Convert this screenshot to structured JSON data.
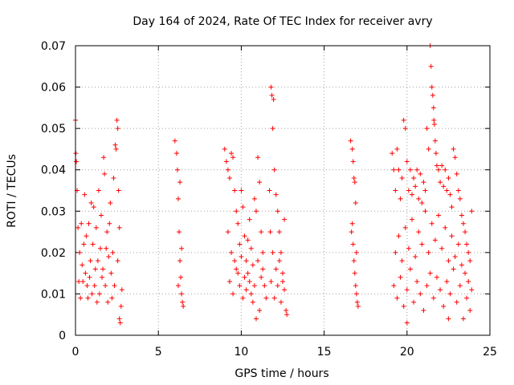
{
  "chart_data": {
    "type": "scatter",
    "title": "Day 164 of 2024, Rate Of TEC Index for receiver avry",
    "xlabel": "GPS time / hours",
    "ylabel": "ROTI / TECUs",
    "xlim": [
      0,
      25
    ],
    "ylim": [
      0,
      0.07
    ],
    "xticks": [
      0,
      5,
      10,
      15,
      20,
      25
    ],
    "xtick_labels": [
      "0",
      "5",
      "10",
      "15",
      "20",
      "25"
    ],
    "yticks": [
      0,
      0.01,
      0.02,
      0.03,
      0.04,
      0.05,
      0.06,
      0.07
    ],
    "ytick_labels": [
      "0",
      "0.01",
      "0.02",
      "0.03",
      "0.04",
      "0.05",
      "0.06",
      "0.07"
    ],
    "grid": true,
    "marker": "plus",
    "series": [
      {
        "name": "avry ROTI",
        "color": "#ff0000",
        "points": [
          [
            0.0,
            0.052
          ],
          [
            0.02,
            0.044
          ],
          [
            0.05,
            0.042
          ],
          [
            0.1,
            0.035
          ],
          [
            0.15,
            0.026
          ],
          [
            0.2,
            0.013
          ],
          [
            0.3,
            0.009
          ],
          [
            0.4,
            0.017
          ],
          [
            0.5,
            0.022
          ],
          [
            0.55,
            0.034
          ],
          [
            0.6,
            0.015
          ],
          [
            0.7,
            0.012
          ],
          [
            0.8,
            0.027
          ],
          [
            0.9,
            0.018
          ],
          [
            1.0,
            0.01
          ],
          [
            1.1,
            0.031
          ],
          [
            1.2,
            0.016
          ],
          [
            1.3,
            0.008
          ],
          [
            1.4,
            0.035
          ],
          [
            1.5,
            0.021
          ],
          [
            1.6,
            0.014
          ],
          [
            1.7,
            0.043
          ],
          [
            1.75,
            0.039
          ],
          [
            1.8,
            0.012
          ],
          [
            1.9,
            0.025
          ],
          [
            2.0,
            0.019
          ],
          [
            2.1,
            0.032
          ],
          [
            2.2,
            0.009
          ],
          [
            2.3,
            0.038
          ],
          [
            2.4,
            0.046
          ],
          [
            2.45,
            0.045
          ],
          [
            2.5,
            0.052
          ],
          [
            2.55,
            0.05
          ],
          [
            2.6,
            0.035
          ],
          [
            2.65,
            0.004
          ],
          [
            2.7,
            0.003
          ],
          [
            2.75,
            0.007
          ],
          [
            2.8,
            0.011
          ],
          [
            0.25,
            0.02
          ],
          [
            0.35,
            0.027
          ],
          [
            0.45,
            0.013
          ],
          [
            0.65,
            0.024
          ],
          [
            0.75,
            0.009
          ],
          [
            0.85,
            0.014
          ],
          [
            0.95,
            0.032
          ],
          [
            1.05,
            0.022
          ],
          [
            1.15,
            0.012
          ],
          [
            1.25,
            0.026
          ],
          [
            1.35,
            0.018
          ],
          [
            1.45,
            0.01
          ],
          [
            1.55,
            0.029
          ],
          [
            1.65,
            0.016
          ],
          [
            1.85,
            0.021
          ],
          [
            1.95,
            0.008
          ],
          [
            2.05,
            0.027
          ],
          [
            2.15,
            0.015
          ],
          [
            2.25,
            0.02
          ],
          [
            2.35,
            0.012
          ],
          [
            2.55,
            0.018
          ],
          [
            2.65,
            0.026
          ],
          [
            6.0,
            0.047
          ],
          [
            6.1,
            0.044
          ],
          [
            6.15,
            0.04
          ],
          [
            6.2,
            0.033
          ],
          [
            6.25,
            0.025
          ],
          [
            6.3,
            0.018
          ],
          [
            6.35,
            0.014
          ],
          [
            6.4,
            0.01
          ],
          [
            6.45,
            0.008
          ],
          [
            6.5,
            0.007
          ],
          [
            6.3,
            0.037
          ],
          [
            6.2,
            0.012
          ],
          [
            6.4,
            0.021
          ],
          [
            9.0,
            0.045
          ],
          [
            9.1,
            0.042
          ],
          [
            9.2,
            0.04
          ],
          [
            9.3,
            0.038
          ],
          [
            9.4,
            0.044
          ],
          [
            9.5,
            0.043
          ],
          [
            9.6,
            0.035
          ],
          [
            9.7,
            0.03
          ],
          [
            9.8,
            0.027
          ],
          [
            9.9,
            0.022
          ],
          [
            10.0,
            0.035
          ],
          [
            10.1,
            0.031
          ],
          [
            10.2,
            0.024
          ],
          [
            10.3,
            0.018
          ],
          [
            10.4,
            0.015
          ],
          [
            10.5,
            0.028
          ],
          [
            10.6,
            0.021
          ],
          [
            10.7,
            0.017
          ],
          [
            10.8,
            0.033
          ],
          [
            10.9,
            0.03
          ],
          [
            11.0,
            0.043
          ],
          [
            11.1,
            0.037
          ],
          [
            11.2,
            0.025
          ],
          [
            11.3,
            0.02
          ],
          [
            11.4,
            0.012
          ],
          [
            11.5,
            0.009
          ],
          [
            11.1,
            0.006
          ],
          [
            10.9,
            0.004
          ],
          [
            9.3,
            0.013
          ],
          [
            9.5,
            0.01
          ],
          [
            9.7,
            0.016
          ],
          [
            9.9,
            0.012
          ],
          [
            10.1,
            0.009
          ],
          [
            10.3,
            0.011
          ],
          [
            10.5,
            0.013
          ],
          [
            10.7,
            0.008
          ],
          [
            11.0,
            0.018
          ],
          [
            11.2,
            0.014
          ],
          [
            9.2,
            0.025
          ],
          [
            9.4,
            0.02
          ],
          [
            9.6,
            0.018
          ],
          [
            9.8,
            0.015
          ],
          [
            10.0,
            0.019
          ],
          [
            10.2,
            0.014
          ],
          [
            10.4,
            0.023
          ],
          [
            10.6,
            0.01
          ],
          [
            10.8,
            0.012
          ],
          [
            11.3,
            0.016
          ],
          [
            11.7,
            0.035
          ],
          [
            11.8,
            0.06
          ],
          [
            11.85,
            0.058
          ],
          [
            11.9,
            0.05
          ],
          [
            11.95,
            0.057
          ],
          [
            12.0,
            0.04
          ],
          [
            12.1,
            0.034
          ],
          [
            12.2,
            0.03
          ],
          [
            12.3,
            0.025
          ],
          [
            12.4,
            0.02
          ],
          [
            12.5,
            0.015
          ],
          [
            12.6,
            0.011
          ],
          [
            12.7,
            0.006
          ],
          [
            12.75,
            0.005
          ],
          [
            11.8,
            0.013
          ],
          [
            12.0,
            0.009
          ],
          [
            12.2,
            0.012
          ],
          [
            12.4,
            0.008
          ],
          [
            11.9,
            0.02
          ],
          [
            12.1,
            0.016
          ],
          [
            12.3,
            0.018
          ],
          [
            12.5,
            0.013
          ],
          [
            11.75,
            0.025
          ],
          [
            12.6,
            0.028
          ],
          [
            16.6,
            0.047
          ],
          [
            16.7,
            0.045
          ],
          [
            16.75,
            0.042
          ],
          [
            16.8,
            0.038
          ],
          [
            16.85,
            0.037
          ],
          [
            16.9,
            0.032
          ],
          [
            16.7,
            0.027
          ],
          [
            16.75,
            0.022
          ],
          [
            16.8,
            0.018
          ],
          [
            16.85,
            0.015
          ],
          [
            16.9,
            0.012
          ],
          [
            16.95,
            0.01
          ],
          [
            17.0,
            0.008
          ],
          [
            17.05,
            0.007
          ],
          [
            16.65,
            0.025
          ],
          [
            16.95,
            0.02
          ],
          [
            19.1,
            0.044
          ],
          [
            19.2,
            0.04
          ],
          [
            19.3,
            0.035
          ],
          [
            19.4,
            0.045
          ],
          [
            19.5,
            0.04
          ],
          [
            19.6,
            0.033
          ],
          [
            19.7,
            0.038
          ],
          [
            19.8,
            0.052
          ],
          [
            19.9,
            0.05
          ],
          [
            20.0,
            0.042
          ],
          [
            20.1,
            0.035
          ],
          [
            20.2,
            0.04
          ],
          [
            20.3,
            0.034
          ],
          [
            20.4,
            0.038
          ],
          [
            20.5,
            0.036
          ],
          [
            20.6,
            0.04
          ],
          [
            20.7,
            0.033
          ],
          [
            20.8,
            0.039
          ],
          [
            20.9,
            0.032
          ],
          [
            21.0,
            0.037
          ],
          [
            21.1,
            0.035
          ],
          [
            21.2,
            0.05
          ],
          [
            21.3,
            0.045
          ],
          [
            21.4,
            0.07
          ],
          [
            21.45,
            0.065
          ],
          [
            21.5,
            0.06
          ],
          [
            21.55,
            0.058
          ],
          [
            21.6,
            0.055
          ],
          [
            21.62,
            0.052
          ],
          [
            21.65,
            0.051
          ],
          [
            21.7,
            0.047
          ],
          [
            21.75,
            0.044
          ],
          [
            21.8,
            0.041
          ],
          [
            21.9,
            0.04
          ],
          [
            22.0,
            0.037
          ],
          [
            22.1,
            0.041
          ],
          [
            22.2,
            0.036
          ],
          [
            22.3,
            0.04
          ],
          [
            22.4,
            0.035
          ],
          [
            22.5,
            0.038
          ],
          [
            22.6,
            0.034
          ],
          [
            22.7,
            0.031
          ],
          [
            22.8,
            0.045
          ],
          [
            22.9,
            0.043
          ],
          [
            23.0,
            0.039
          ],
          [
            23.1,
            0.035
          ],
          [
            23.2,
            0.033
          ],
          [
            23.3,
            0.029
          ],
          [
            23.4,
            0.027
          ],
          [
            23.5,
            0.025
          ],
          [
            23.6,
            0.022
          ],
          [
            23.7,
            0.02
          ],
          [
            23.8,
            0.018
          ],
          [
            23.9,
            0.03
          ],
          [
            19.2,
            0.012
          ],
          [
            19.4,
            0.009
          ],
          [
            19.6,
            0.014
          ],
          [
            19.8,
            0.007
          ],
          [
            20.0,
            0.011
          ],
          [
            20.2,
            0.016
          ],
          [
            20.4,
            0.008
          ],
          [
            20.6,
            0.013
          ],
          [
            20.8,
            0.01
          ],
          [
            21.0,
            0.006
          ],
          [
            21.2,
            0.012
          ],
          [
            21.4,
            0.015
          ],
          [
            21.6,
            0.009
          ],
          [
            21.8,
            0.014
          ],
          [
            22.0,
            0.011
          ],
          [
            22.2,
            0.007
          ],
          [
            22.4,
            0.013
          ],
          [
            22.6,
            0.01
          ],
          [
            22.8,
            0.016
          ],
          [
            23.0,
            0.008
          ],
          [
            23.2,
            0.012
          ],
          [
            23.4,
            0.004
          ],
          [
            23.6,
            0.009
          ],
          [
            23.8,
            0.006
          ],
          [
            19.3,
            0.02
          ],
          [
            19.5,
            0.024
          ],
          [
            19.7,
            0.018
          ],
          [
            19.9,
            0.026
          ],
          [
            20.1,
            0.021
          ],
          [
            20.3,
            0.028
          ],
          [
            20.5,
            0.019
          ],
          [
            20.7,
            0.025
          ],
          [
            20.9,
            0.022
          ],
          [
            21.1,
            0.03
          ],
          [
            21.3,
            0.02
          ],
          [
            21.5,
            0.027
          ],
          [
            21.7,
            0.023
          ],
          [
            21.9,
            0.029
          ],
          [
            22.1,
            0.021
          ],
          [
            22.3,
            0.026
          ],
          [
            22.5,
            0.018
          ],
          [
            22.7,
            0.024
          ],
          [
            22.9,
            0.019
          ],
          [
            23.1,
            0.022
          ],
          [
            23.3,
            0.017
          ],
          [
            23.5,
            0.015
          ],
          [
            23.7,
            0.013
          ],
          [
            23.9,
            0.011
          ],
          [
            20.0,
            0.003
          ],
          [
            22.5,
            0.004
          ]
        ]
      }
    ]
  }
}
